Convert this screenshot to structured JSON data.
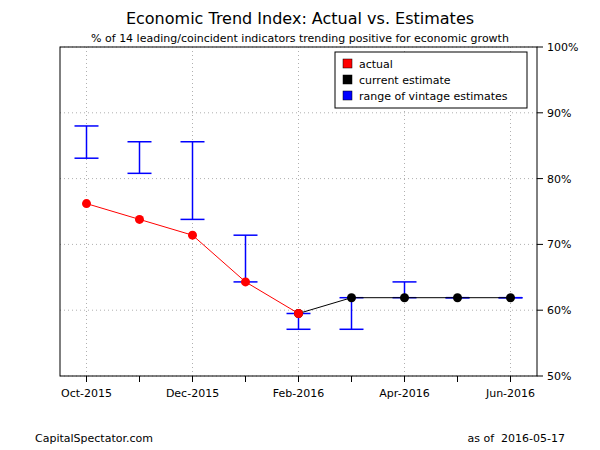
{
  "chart_data": {
    "type": "line",
    "title": "Economic Trend Index: Actual vs. Estimates",
    "subtitle": "% of 14 leading/coincident indicators trending positive for economic growth",
    "source": "CapitalSpectator.com",
    "note": "as of  2016-05-17",
    "categories": [
      "Oct-2015",
      null,
      "Dec-2015",
      null,
      "Feb-2016",
      null,
      "Apr-2016",
      null,
      "Jun-2016"
    ],
    "series": [
      {
        "name": "actual",
        "color": "#ff0000",
        "type": "line",
        "marker": "circle",
        "values": [
          76.2,
          73.8,
          71.4,
          64.3,
          59.5,
          null,
          null,
          null,
          null
        ]
      },
      {
        "name": "current estimate",
        "color": "#000000",
        "type": "line",
        "marker": "circle",
        "values": [
          null,
          null,
          null,
          null,
          59.5,
          61.9,
          61.9,
          61.9,
          61.9
        ]
      },
      {
        "name": "range of vintage estimates",
        "color": "#0000ff",
        "type": "range",
        "low": [
          83.1,
          80.8,
          73.8,
          64.3,
          57.1,
          57.1,
          61.9,
          61.9,
          61.9
        ],
        "high": [
          88.0,
          85.6,
          85.6,
          71.4,
          59.5,
          61.9,
          64.3,
          61.9,
          61.9
        ]
      }
    ],
    "ylim": [
      50,
      100
    ],
    "yticks": [
      {
        "value": 50,
        "label": "50%"
      },
      {
        "value": 60,
        "label": "60%"
      },
      {
        "value": 70,
        "label": "70%"
      },
      {
        "value": 80,
        "label": "80%"
      },
      {
        "value": 90,
        "label": "90%"
      },
      {
        "value": 100,
        "label": "100%"
      }
    ],
    "grid": true,
    "legend": "topright"
  }
}
